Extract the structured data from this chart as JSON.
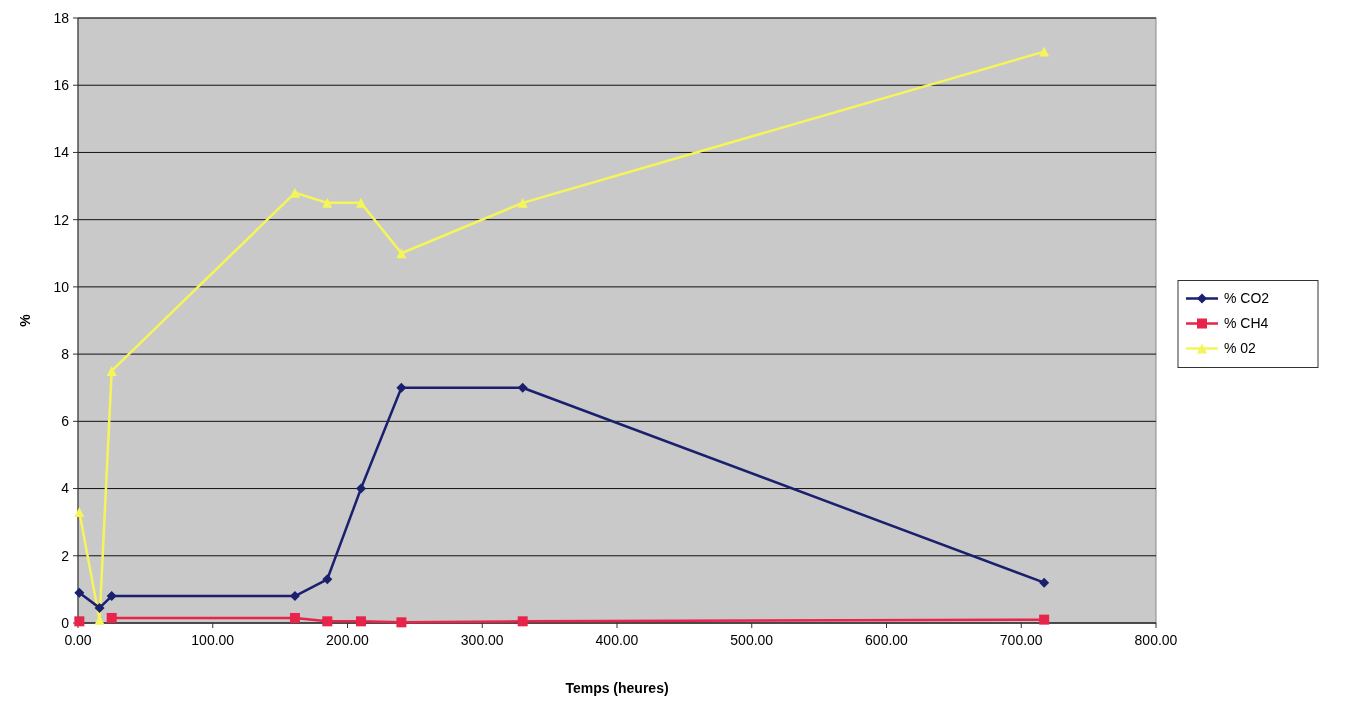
{
  "chart_data": {
    "type": "line",
    "xlabel": "Temps (heures)",
    "ylabel": "%",
    "x": [
      1,
      16,
      25,
      161,
      185,
      210,
      240,
      330,
      717
    ],
    "xlim": [
      0,
      800
    ],
    "xticks": [
      {
        "value": 0,
        "label": "0.00"
      },
      {
        "value": 100,
        "label": "100.00"
      },
      {
        "value": 200,
        "label": "200.00"
      },
      {
        "value": 300,
        "label": "300.00"
      },
      {
        "value": 400,
        "label": "400.00"
      },
      {
        "value": 500,
        "label": "500.00"
      },
      {
        "value": 600,
        "label": "600.00"
      },
      {
        "value": 700,
        "label": "700.00"
      },
      {
        "value": 800,
        "label": "800.00"
      }
    ],
    "ylim": [
      0,
      18
    ],
    "yticks": [
      0,
      2,
      4,
      6,
      8,
      10,
      12,
      14,
      16,
      18
    ],
    "grid": "y",
    "legend": "right",
    "series": [
      {
        "name": "% CO2",
        "color": "#1a1f6e",
        "marker": "diamond",
        "values": [
          0.9,
          0.45,
          0.8,
          0.8,
          1.3,
          4,
          7,
          7,
          1.2
        ]
      },
      {
        "name": "% CH4",
        "color": "#e8244a",
        "marker": "square",
        "values": [
          0.05,
          null,
          0.15,
          0.15,
          0.05,
          0.05,
          0.02,
          0.05,
          0.1
        ]
      },
      {
        "name": "% 02",
        "color": "#f5f55a",
        "marker": "triangle",
        "values": [
          3.3,
          0.1,
          7.5,
          12.8,
          12.5,
          12.5,
          11,
          12.5,
          17
        ]
      }
    ]
  }
}
